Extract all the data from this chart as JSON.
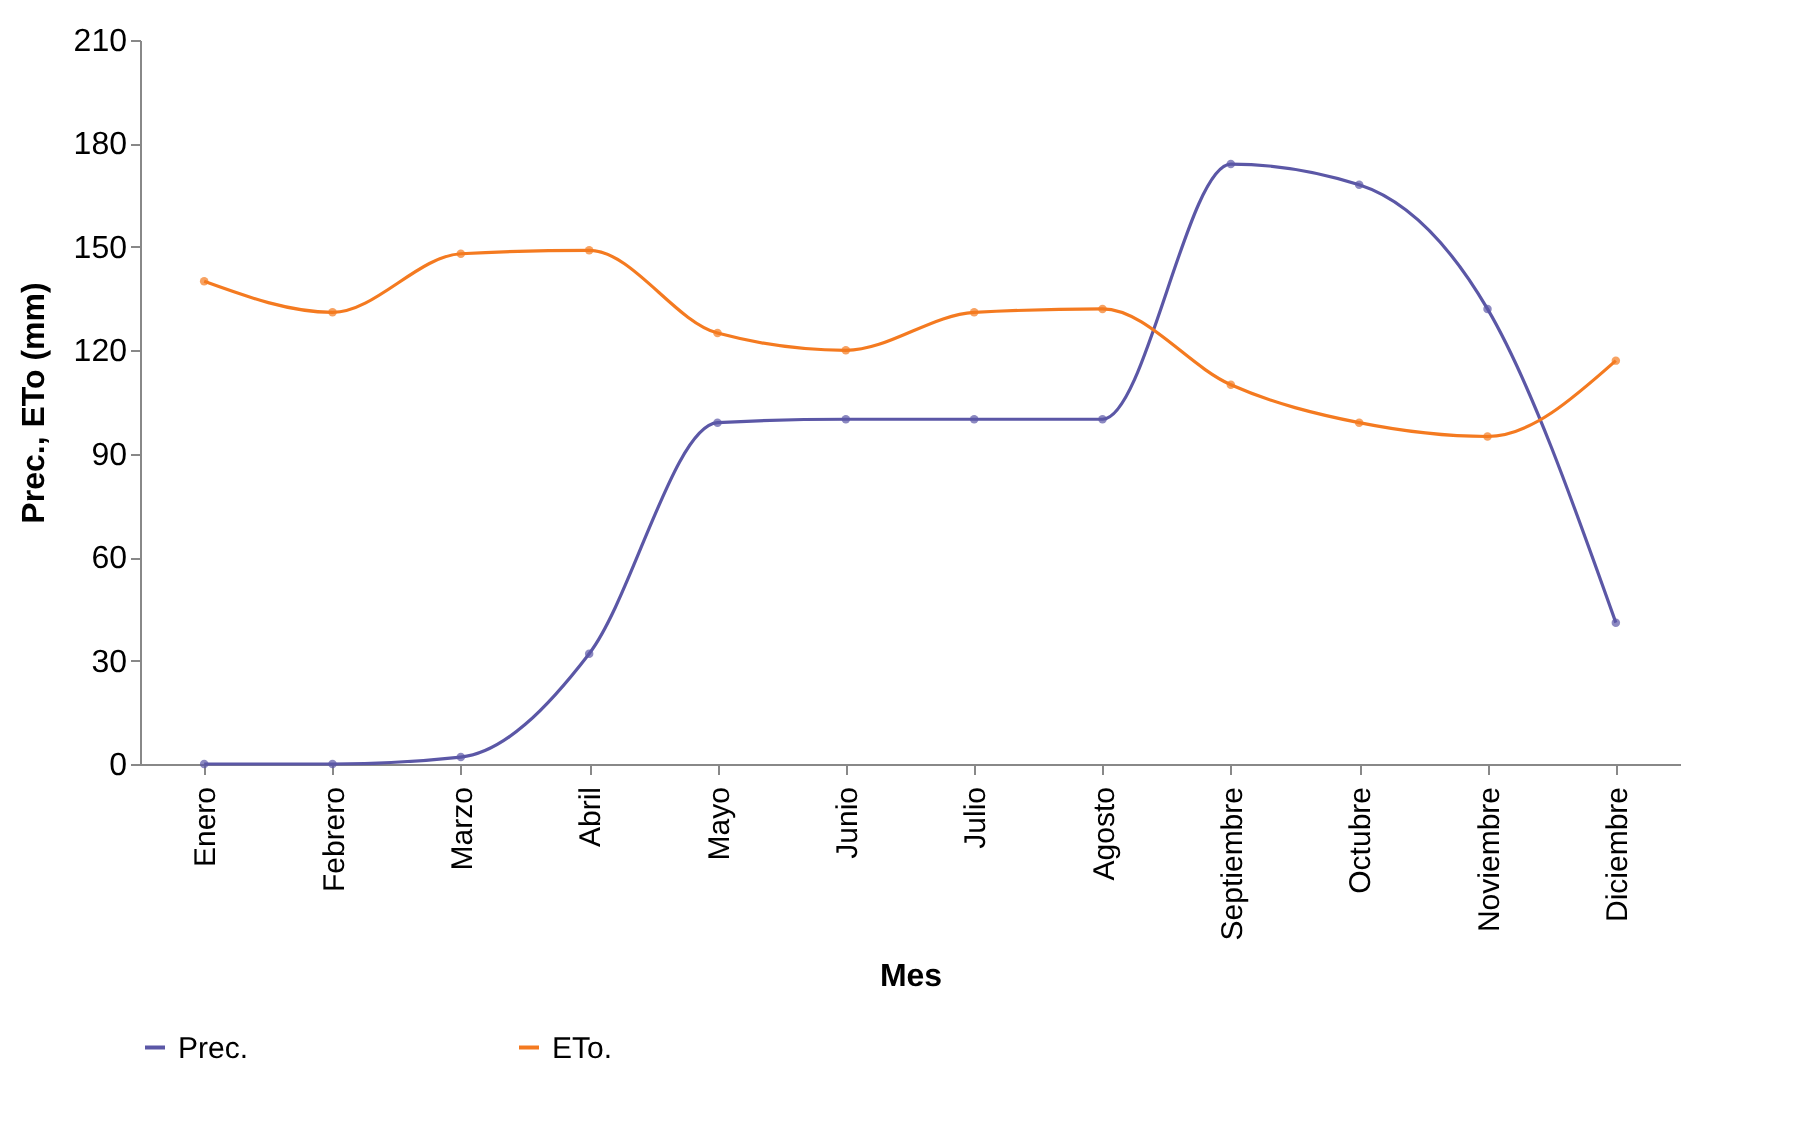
{
  "chart_data": {
    "type": "line",
    "xlabel": "Mes",
    "ylabel": "Prec., ETo (mm)",
    "categories": [
      "Enero",
      "Febrero",
      "Marzo",
      "Abril",
      "Mayo",
      "Junio",
      "Julio",
      "Agosto",
      "Septiembre",
      "Octubre",
      "Noviembre",
      "Diciembre"
    ],
    "series": [
      {
        "name": "Prec.",
        "color": "#5b57a6",
        "values": [
          0,
          0,
          2,
          32,
          99,
          100,
          100,
          100,
          174,
          168,
          132,
          41
        ]
      },
      {
        "name": "ETo.",
        "color": "#f47a20",
        "values": [
          140,
          131,
          148,
          149,
          125,
          120,
          131,
          132,
          110,
          99,
          95,
          117
        ]
      }
    ],
    "ylim": [
      0,
      210
    ],
    "yticks": [
      0,
      30,
      60,
      90,
      120,
      150,
      180,
      210
    ],
    "grid": false,
    "legend": "bottom",
    "marker": "circle",
    "line_style": "solid"
  }
}
